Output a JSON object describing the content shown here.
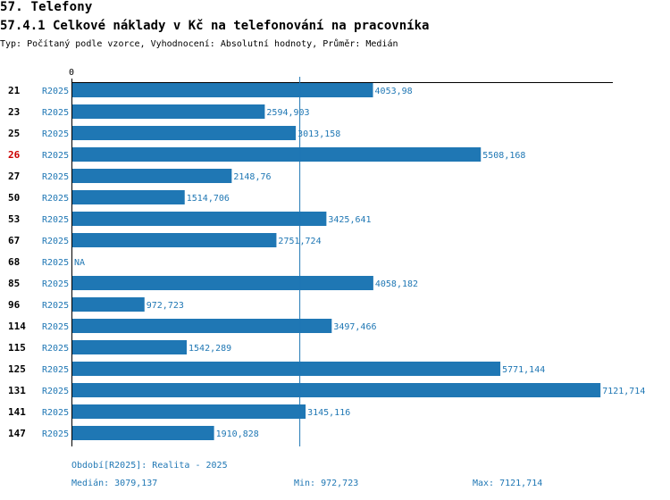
{
  "header": {
    "section": "57. Telefony",
    "title": "57.4.1 Celkové náklady v Kč na telefonování na pracovníka",
    "subtitle": "Typ: Počítaný podle vzorce, Vyhodnocení: Absolutní hodnoty, Průměr: Medián"
  },
  "colors": {
    "bar": "#1f77b4",
    "highlight": "#cc0000",
    "label": "#1f77b4"
  },
  "chart_data": {
    "type": "bar",
    "orientation": "horizontal",
    "axis_zero_label": "0",
    "xlim": [
      0,
      7300
    ],
    "median_line": 3079.137,
    "highlight_category": "26",
    "rows": [
      {
        "id": "21",
        "period": "R2025",
        "value": 4053.98,
        "label": "4053,98"
      },
      {
        "id": "23",
        "period": "R2025",
        "value": 2594.903,
        "label": "2594,903"
      },
      {
        "id": "25",
        "period": "R2025",
        "value": 3013.158,
        "label": "3013,158"
      },
      {
        "id": "26",
        "period": "R2025",
        "value": 5508.168,
        "label": "5508,168"
      },
      {
        "id": "27",
        "period": "R2025",
        "value": 2148.76,
        "label": "2148,76"
      },
      {
        "id": "50",
        "period": "R2025",
        "value": 1514.706,
        "label": "1514,706"
      },
      {
        "id": "53",
        "period": "R2025",
        "value": 3425.641,
        "label": "3425,641"
      },
      {
        "id": "67",
        "period": "R2025",
        "value": 2751.724,
        "label": "2751,724"
      },
      {
        "id": "68",
        "period": "R2025",
        "value": null,
        "label": "NA"
      },
      {
        "id": "85",
        "period": "R2025",
        "value": 4058.182,
        "label": "4058,182"
      },
      {
        "id": "96",
        "period": "R2025",
        "value": 972.723,
        "label": "972,723"
      },
      {
        "id": "114",
        "period": "R2025",
        "value": 3497.466,
        "label": "3497,466"
      },
      {
        "id": "115",
        "period": "R2025",
        "value": 1542.289,
        "label": "1542,289"
      },
      {
        "id": "125",
        "period": "R2025",
        "value": 5771.144,
        "label": "5771,144"
      },
      {
        "id": "131",
        "period": "R2025",
        "value": 7121.714,
        "label": "7121,714"
      },
      {
        "id": "141",
        "period": "R2025",
        "value": 3145.116,
        "label": "3145,116"
      },
      {
        "id": "147",
        "period": "R2025",
        "value": 1910.828,
        "label": "1910,828"
      }
    ]
  },
  "footer": {
    "period": "Období[R2025]: Realita - 2025",
    "median": "Medián: 3079,137",
    "min": "Min: 972,723",
    "max": "Max: 7121,714"
  }
}
